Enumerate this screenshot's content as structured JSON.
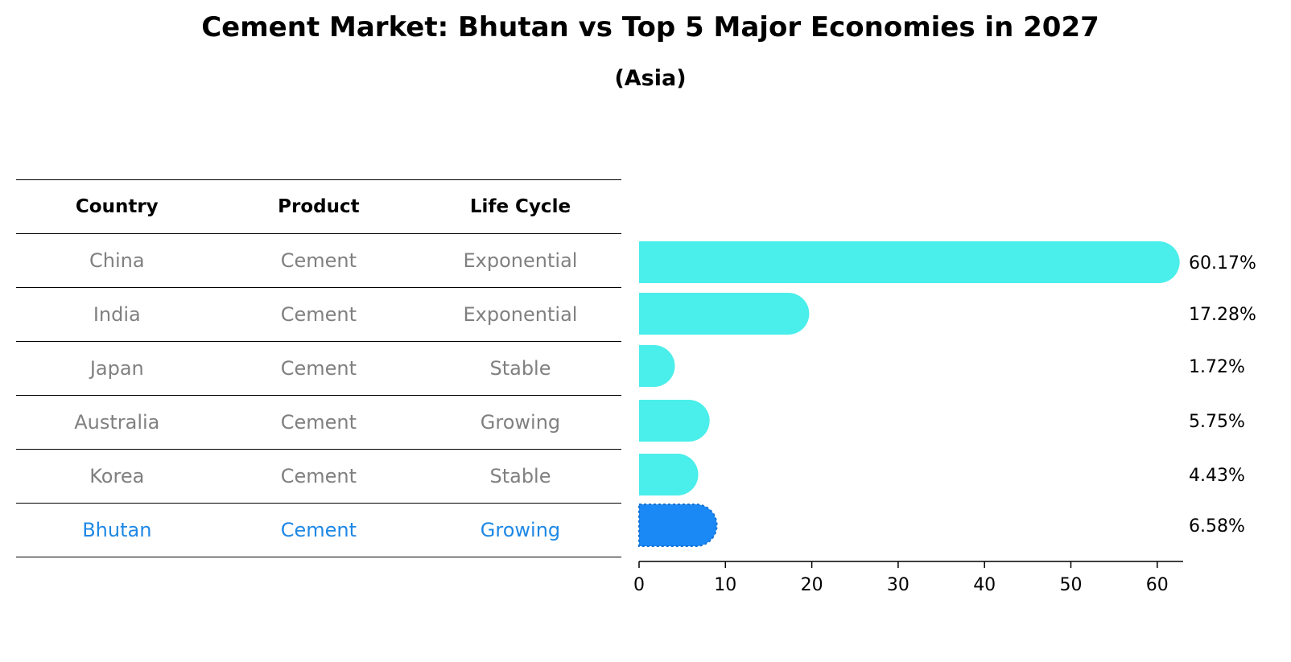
{
  "title": "Cement Market: Bhutan vs Top 5 Major Economies in 2027",
  "subtitle": "(Asia)",
  "table": {
    "headers": [
      "Country",
      "Product",
      "Life Cycle"
    ],
    "rows": [
      {
        "country": "China",
        "product": "Cement",
        "life_cycle": "Exponential"
      },
      {
        "country": "India",
        "product": "Cement",
        "life_cycle": "Exponential"
      },
      {
        "country": "Japan",
        "product": "Cement",
        "life_cycle": "Stable"
      },
      {
        "country": "Australia",
        "product": "Cement",
        "life_cycle": "Growing"
      },
      {
        "country": "Korea",
        "product": "Cement",
        "life_cycle": "Stable"
      },
      {
        "country": "Bhutan",
        "product": "Cement",
        "life_cycle": "Growing"
      }
    ]
  },
  "colors": {
    "bar": "#4aeeea",
    "highlight": "#1a88f5",
    "muted_text": "#808080",
    "highlight_text": "#1e88e5"
  },
  "chart_data": {
    "type": "bar",
    "orientation": "horizontal",
    "categories": [
      "China",
      "India",
      "Japan",
      "Australia",
      "Korea",
      "Bhutan"
    ],
    "values": [
      60.17,
      17.28,
      1.72,
      5.75,
      4.43,
      6.58
    ],
    "value_labels": [
      "60.17%",
      "17.28%",
      "1.72%",
      "5.75%",
      "4.43%",
      "6.58%"
    ],
    "highlight": "Bhutan",
    "xlim": [
      0,
      63
    ],
    "xticks": [
      0,
      10,
      20,
      30,
      40,
      50,
      60
    ],
    "xlabel": "",
    "ylabel": "",
    "grid": false
  }
}
